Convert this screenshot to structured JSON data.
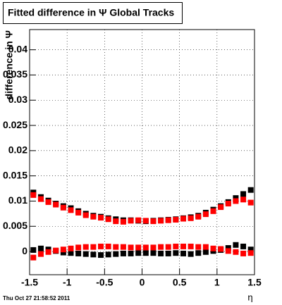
{
  "chart_data": {
    "type": "scatter",
    "title": "Fitted difference in Ψ   Global Tracks",
    "x_label": "η",
    "y_label": "difference in Ψ",
    "timestamp": "Thu Oct 27 21:58:52 2011",
    "x": [
      -1.45,
      -1.35,
      -1.25,
      -1.15,
      -1.05,
      -0.95,
      -0.85,
      -0.75,
      -0.65,
      -0.55,
      -0.45,
      -0.35,
      -0.25,
      -0.15,
      -0.05,
      0.05,
      0.15,
      0.25,
      0.35,
      0.45,
      0.55,
      0.65,
      0.75,
      0.85,
      0.95,
      1.05,
      1.15,
      1.25,
      1.35,
      1.45
    ],
    "series": [
      {
        "color": "#000000",
        "values": [
          0.0117,
          0.0108,
          0.0101,
          0.0095,
          0.009,
          0.0086,
          0.008,
          0.0075,
          0.0071,
          0.0069,
          0.0066,
          0.0064,
          0.0062,
          0.0062,
          0.0061,
          0.006,
          0.0061,
          0.0062,
          0.0063,
          0.0064,
          0.0066,
          0.0068,
          0.0071,
          0.0077,
          0.0083,
          0.009,
          0.0098,
          0.0106,
          0.0114,
          0.0122
        ]
      },
      {
        "color": "#ff0000",
        "values": [
          0.0112,
          0.0104,
          0.0098,
          0.0093,
          0.0087,
          0.0082,
          0.0077,
          0.0072,
          0.0069,
          0.0067,
          0.0064,
          0.006,
          0.0059,
          0.0061,
          0.0062,
          0.0061,
          0.006,
          0.0061,
          0.0062,
          0.0063,
          0.0065,
          0.0066,
          0.0069,
          0.0074,
          0.008,
          0.0088,
          0.0095,
          0.01,
          0.0103,
          0.0097
        ]
      },
      {
        "color": "#000000",
        "values": [
          0.0003,
          0.0006,
          0.0004,
          0.0001,
          -0.0002,
          -0.0003,
          -0.0004,
          -0.0005,
          -0.0006,
          -0.0007,
          -0.0006,
          -0.0005,
          -0.0004,
          -0.0004,
          -0.0003,
          -0.0003,
          -0.0003,
          -0.0004,
          -0.0004,
          -0.0003,
          -0.0004,
          -0.0005,
          -0.0003,
          -0.0001,
          0.0001,
          0.0003,
          0.0007,
          0.0013,
          0.001,
          0.0004
        ]
      },
      {
        "color": "#ff0000",
        "values": [
          -0.0012,
          -0.0005,
          -0.0001,
          0.0002,
          0.0004,
          0.0006,
          0.0008,
          0.0009,
          0.0009,
          0.001,
          0.001,
          0.0009,
          0.0009,
          0.0008,
          0.0008,
          0.0008,
          0.0008,
          0.0009,
          0.0009,
          0.001,
          0.001,
          0.001,
          0.0009,
          0.0009,
          0.0006,
          0.0005,
          0.0001,
          -0.0001,
          -0.0004,
          -0.0003
        ]
      }
    ],
    "xlim": [
      -1.5,
      1.5
    ],
    "xticks": [
      -1.5,
      -1,
      -0.5,
      0,
      0.5,
      1,
      1.5
    ],
    "ylim": [
      -0.0046,
      0.044
    ],
    "yticks": [
      0,
      0.005,
      0.01,
      0.015,
      0.02,
      0.025,
      0.03,
      0.035,
      0.04
    ],
    "grid": true
  }
}
